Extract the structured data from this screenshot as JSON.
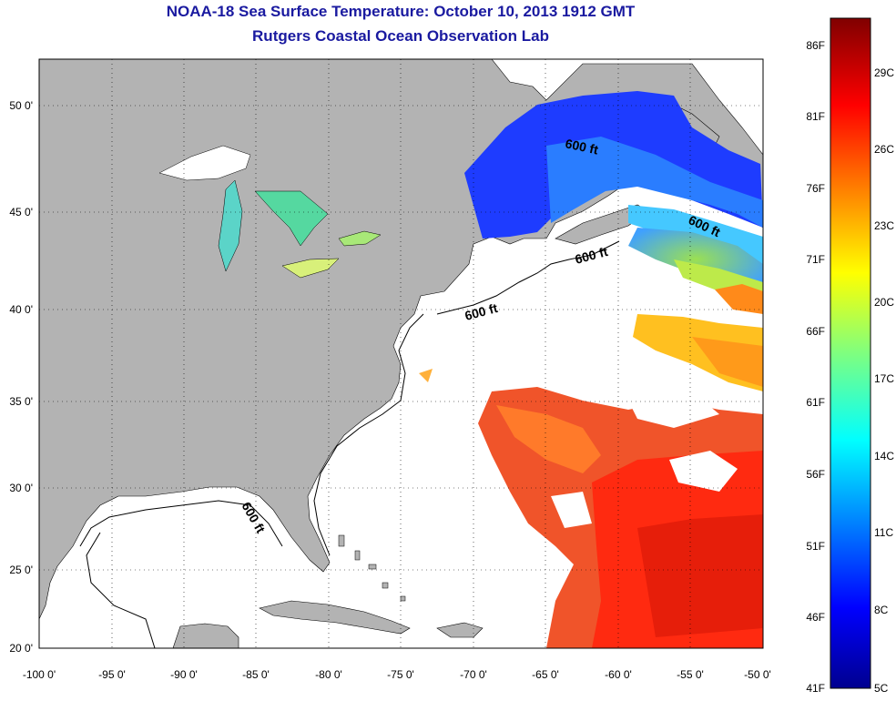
{
  "title_line1": "NOAA-18 Sea Surface Temperature:  October 10, 2013 1912 GMT",
  "title_line2": "Rutgers Coastal Ocean Observation Lab",
  "map": {
    "lon_range": [
      -100,
      -50
    ],
    "lat_range": [
      20,
      52
    ],
    "lon_ticks": [
      "-100 0'",
      "-95 0'",
      "-90 0'",
      "-85 0'",
      "-80 0'",
      "-75 0'",
      "-70 0'",
      "-65 0'",
      "-60 0'",
      "-55 0'",
      "-50 0'"
    ],
    "lat_ticks": [
      {
        "lat": 50,
        "label": "50 0'"
      },
      {
        "lat": 45,
        "label": "45 0'"
      },
      {
        "lat": 40,
        "label": "40 0'"
      },
      {
        "lat": 35,
        "label": "35 0'"
      },
      {
        "lat": 30,
        "label": "30 0'"
      },
      {
        "lat": 25,
        "label": "25 0'"
      },
      {
        "lat": 20,
        "label": "20 0'"
      }
    ],
    "contour_labels": [
      "600 ft",
      "600 ft",
      "600 ft",
      "600 ft",
      "600 ft"
    ],
    "colors": {
      "land": "#b3b3b3",
      "ocean": "#ffffff",
      "grid": "#000000"
    }
  },
  "colorbar": {
    "fahrenheit_labels": [
      "86F",
      "81F",
      "76F",
      "71F",
      "66F",
      "61F",
      "56F",
      "51F",
      "46F",
      "41F"
    ],
    "celsius_labels": [
      "29C",
      "26C",
      "23C",
      "20C",
      "17C",
      "14C",
      "11C",
      "8C",
      "5C"
    ],
    "colormap": "jet",
    "range_c": [
      5,
      30
    ]
  }
}
